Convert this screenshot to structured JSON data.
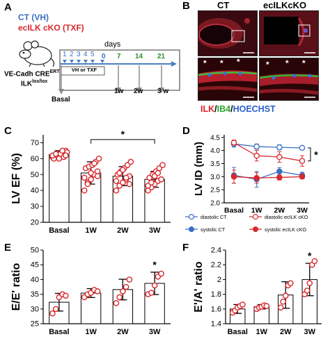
{
  "panel_letters": [
    "A",
    "B",
    "C",
    "D",
    "E",
    "F"
  ],
  "panelA": {
    "ct_label": "CT (VH)",
    "ko_label": "ecILK cKO (TXF)",
    "days_label": "days",
    "dose_numbers": [
      "1",
      "2",
      "3",
      "4",
      "5"
    ],
    "late_days": [
      "0",
      "7",
      "14",
      "21"
    ],
    "treatment_box": "VH or TXF",
    "mouse_line1": "VE-Cadh CRE",
    "mouse_line1_sup": "ERT2",
    "mouse_line2": "ILK",
    "mouse_line2_sup": "lox/lox",
    "timepoints": [
      "Basal",
      "1w",
      "2w",
      "3 w"
    ],
    "colors": {
      "ct": "#3a6fc4",
      "ko": "#d8282d",
      "green": "#2e8b2e",
      "arrow": "#4a7fc0"
    }
  },
  "panelB": {
    "ct_title": "CT",
    "ko_title": "ecILKcKO",
    "stain_ilk": "ILK",
    "stain_ib4": "IB4",
    "stain_hoechst": "HOECHST",
    "slash": "/",
    "asterisk": "*",
    "colors": {
      "ilk": "#e0202a",
      "ib4": "#2aa52a",
      "hoechst": "#2a5fc8"
    }
  },
  "chart_data": [
    {
      "id": "C",
      "type": "bar",
      "ylabel": "LV EF (%)",
      "categories": [
        "Basal",
        "1W",
        "2W",
        "3W"
      ],
      "values": [
        62.5,
        51,
        49,
        47
      ],
      "errors": [
        2.5,
        7,
        6,
        5
      ],
      "points": [
        [
          61,
          62,
          63,
          64,
          65,
          60,
          62,
          63,
          61,
          64,
          62,
          63,
          60,
          65,
          62
        ],
        [
          40,
          45,
          47,
          50,
          52,
          54,
          55,
          56,
          58,
          60,
          48,
          44,
          51,
          57,
          49
        ],
        [
          40,
          43,
          45,
          47,
          49,
          50,
          52,
          54,
          56,
          58,
          46,
          51,
          53,
          48,
          44
        ],
        [
          40,
          42,
          44,
          46,
          47,
          48,
          50,
          52,
          54,
          56,
          43,
          45,
          49,
          51,
          47
        ]
      ],
      "ylim": [
        20,
        75
      ],
      "yticks": [
        20,
        30,
        40,
        50,
        60,
        70
      ],
      "annotation": "*"
    },
    {
      "id": "D",
      "type": "line",
      "ylabel": "LV ID (mm)",
      "categories": [
        "Basal",
        "1W",
        "2W",
        "3W"
      ],
      "ylim": [
        2.0,
        4.6
      ],
      "yticks": [
        2.0,
        2.5,
        3.0,
        3.5,
        4.0,
        4.5
      ],
      "series": [
        {
          "name": "diastolic CT",
          "values": [
            4.25,
            4.15,
            4.12,
            4.1
          ],
          "errors": [
            0.12,
            0.1,
            0.1,
            0.06
          ],
          "color": "#3a6fc4",
          "filled": false
        },
        {
          "name": "diastolic ecILK cKO",
          "values": [
            4.3,
            3.8,
            3.75,
            3.6
          ],
          "errors": [
            0.1,
            0.2,
            0.2,
            0.2
          ],
          "color": "#d8282d",
          "filled": false
        },
        {
          "name": "systolic  CT",
          "values": [
            3.05,
            2.9,
            3.2,
            3.05
          ],
          "errors": [
            0.3,
            0.3,
            0.15,
            0.12
          ],
          "color": "#3a6fc4",
          "filled": true
        },
        {
          "name": "systolic  ecILK cKO",
          "values": [
            3.0,
            2.95,
            2.97,
            3.0
          ],
          "errors": [
            0.25,
            0.2,
            0.1,
            0.08
          ],
          "color": "#d8282d",
          "filled": true
        }
      ],
      "annotation": "*"
    },
    {
      "id": "E",
      "type": "bar",
      "ylabel": "E/E' ratio",
      "categories": [
        "Basal",
        "1W",
        "2W",
        "3W"
      ],
      "values": [
        32.3,
        35.4,
        36.6,
        38.7
      ],
      "errors": [
        3,
        1.5,
        3.5,
        3.8
      ],
      "points": [
        [
          28.5,
          30,
          34,
          35,
          34.5
        ],
        [
          34,
          35,
          35.5,
          36.5,
          36
        ],
        [
          32,
          34,
          36,
          37.5,
          40
        ],
        [
          35,
          35.5,
          38,
          41,
          42
        ]
      ],
      "ylim": [
        25,
        50
      ],
      "yticks": [
        25,
        30,
        35,
        40,
        45,
        50
      ],
      "annotation": "*"
    },
    {
      "id": "F",
      "type": "bar",
      "ylabel": "E'/A' ratio",
      "categories": [
        "Basal",
        "1W",
        "2W",
        "3W"
      ],
      "values": [
        1.6,
        1.63,
        1.79,
        2.0
      ],
      "errors": [
        0.06,
        0.03,
        0.18,
        0.22
      ],
      "points": [
        [
          1.55,
          1.58,
          1.62,
          1.64,
          1.66
        ],
        [
          1.6,
          1.62,
          1.63,
          1.65,
          1.64
        ],
        [
          1.62,
          1.7,
          1.78,
          1.92,
          1.95
        ],
        [
          1.8,
          1.85,
          1.95,
          2.2,
          2.25
        ]
      ],
      "ylim": [
        1.4,
        2.4
      ],
      "yticks": [
        1.4,
        1.6,
        1.8,
        2.0,
        2.2,
        2.4
      ],
      "annotation": "*"
    }
  ]
}
